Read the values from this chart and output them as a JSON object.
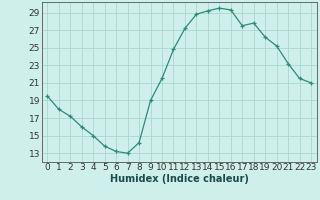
{
  "x": [
    0,
    1,
    2,
    3,
    4,
    5,
    6,
    7,
    8,
    9,
    10,
    11,
    12,
    13,
    14,
    15,
    16,
    17,
    18,
    19,
    20,
    21,
    22,
    23
  ],
  "y": [
    19.5,
    18.0,
    17.2,
    16.0,
    15.0,
    13.8,
    13.2,
    13.0,
    14.2,
    19.0,
    21.5,
    24.8,
    27.2,
    28.8,
    29.2,
    29.5,
    29.3,
    27.5,
    27.8,
    26.2,
    25.2,
    23.2,
    21.5,
    21.0
  ],
  "line_color": "#2d8b77",
  "marker_color": "#2d8b77",
  "bg_color": "#cff0ea",
  "grid_color": "#aad6ce",
  "xlabel": "Humidex (Indice chaleur)",
  "yticks": [
    13,
    15,
    17,
    19,
    21,
    23,
    25,
    27,
    29
  ],
  "xticks": [
    0,
    1,
    2,
    3,
    4,
    5,
    6,
    7,
    8,
    9,
    10,
    11,
    12,
    13,
    14,
    15,
    16,
    17,
    18,
    19,
    20,
    21,
    22,
    23
  ],
  "ylim": [
    12.0,
    30.2
  ],
  "xlim": [
    -0.5,
    23.5
  ],
  "xlabel_fontsize": 7,
  "tick_fontsize": 6.5
}
